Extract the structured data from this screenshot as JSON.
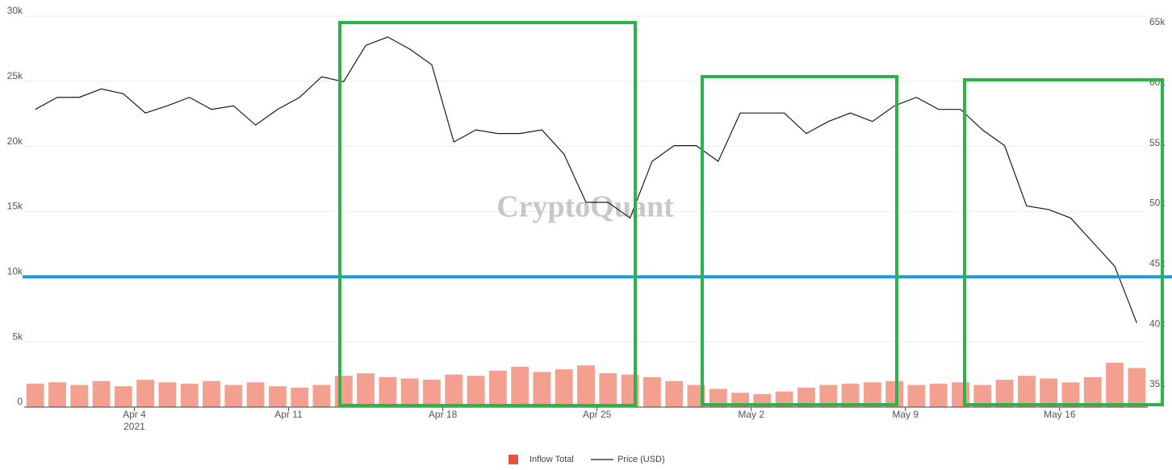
{
  "chart_data": {
    "type": "bar-line",
    "watermark": "CryptoQuant",
    "x": [
      "2021-03-30",
      "2021-03-31",
      "2021-04-01",
      "2021-04-02",
      "2021-04-03",
      "2021-04-04",
      "2021-04-05",
      "2021-04-06",
      "2021-04-07",
      "2021-04-08",
      "2021-04-09",
      "2021-04-10",
      "2021-04-11",
      "2021-04-12",
      "2021-04-13",
      "2021-04-14",
      "2021-04-15",
      "2021-04-16",
      "2021-04-17",
      "2021-04-18",
      "2021-04-19",
      "2021-04-20",
      "2021-04-21",
      "2021-04-22",
      "2021-04-23",
      "2021-04-24",
      "2021-04-25",
      "2021-04-26",
      "2021-04-27",
      "2021-04-28",
      "2021-04-29",
      "2021-04-30",
      "2021-05-01",
      "2021-05-02",
      "2021-05-03",
      "2021-05-04",
      "2021-05-05",
      "2021-05-06",
      "2021-05-07",
      "2021-05-08",
      "2021-05-09",
      "2021-05-10",
      "2021-05-11",
      "2021-05-12",
      "2021-05-13",
      "2021-05-14",
      "2021-05-15",
      "2021-05-16",
      "2021-05-17",
      "2021-05-18",
      "2021-05-19"
    ],
    "xlim": [
      "2021-03-30",
      "2021-05-20"
    ],
    "xticks": [
      {
        "value": "2021-04-04",
        "label": "Apr 4",
        "sublabel": "2021"
      },
      {
        "value": "2021-04-11",
        "label": "Apr 11"
      },
      {
        "value": "2021-04-18",
        "label": "Apr 18"
      },
      {
        "value": "2021-04-25",
        "label": "Apr 25"
      },
      {
        "value": "2021-05-02",
        "label": "May 2"
      },
      {
        "value": "2021-05-09",
        "label": "May 9"
      },
      {
        "value": "2021-05-16",
        "label": "May 16"
      }
    ],
    "ylim": [
      0,
      30000
    ],
    "yticks": [
      {
        "value": 0,
        "label": "0"
      },
      {
        "value": 5000,
        "label": "5k"
      },
      {
        "value": 10000,
        "label": "10k"
      },
      {
        "value": 15000,
        "label": "15k"
      },
      {
        "value": 20000,
        "label": "20k"
      },
      {
        "value": 25000,
        "label": "25k"
      },
      {
        "value": 30000,
        "label": "30k"
      }
    ],
    "y2lim": [
      33130,
      65530
    ],
    "y2ticks": [
      {
        "value": 35000,
        "label": "35k"
      },
      {
        "value": 40000,
        "label": "40k"
      },
      {
        "value": 45000,
        "label": "45k"
      },
      {
        "value": 50000,
        "label": "50k"
      },
      {
        "value": 55000,
        "label": "55k"
      },
      {
        "value": 60000,
        "label": "60k"
      },
      {
        "value": 65000,
        "label": "65k"
      }
    ],
    "reference_line": {
      "value": 10000,
      "color": "#1a9bd7"
    },
    "grid": true,
    "legend": "bottom",
    "series": [
      {
        "name": "Inflow Total",
        "color": "#f4a090",
        "legend_color": "#e5533c",
        "kind": "bar",
        "values": [
          1800,
          1900,
          1700,
          2000,
          1600,
          2100,
          1900,
          1800,
          2000,
          1700,
          1900,
          1600,
          1500,
          1700,
          2400,
          2600,
          2300,
          2200,
          2100,
          2500,
          2400,
          2800,
          3100,
          2700,
          2900,
          3200,
          2600,
          2500,
          2300,
          2000,
          1700,
          1400,
          1100,
          1000,
          1200,
          1500,
          1700,
          1800,
          1900,
          2000,
          1700,
          1800,
          1900,
          1700,
          2100,
          2400,
          2200,
          1900,
          2300,
          3400,
          3000
        ]
      },
      {
        "name": "Price (USD)",
        "color": "#1a1a2e",
        "kind": "line",
        "axis": "y2",
        "values": [
          57800,
          58800,
          58800,
          59500,
          59100,
          57500,
          58100,
          58800,
          57800,
          58100,
          56500,
          57800,
          58800,
          60500,
          60100,
          63100,
          63800,
          62800,
          61500,
          55100,
          56100,
          55800,
          55800,
          56100,
          54100,
          50100,
          50100,
          48800,
          53500,
          54800,
          54800,
          53500,
          57500,
          57500,
          57500,
          55800,
          56800,
          57500,
          56800,
          58100,
          58800,
          57800,
          57800,
          56100,
          54800,
          49800,
          49500,
          48800,
          46800,
          44800,
          40100
        ]
      }
    ]
  }
}
